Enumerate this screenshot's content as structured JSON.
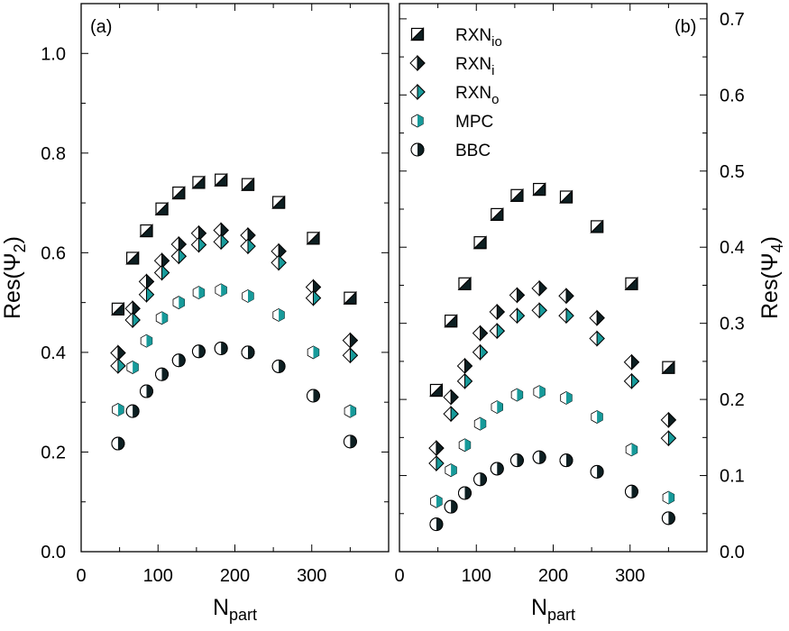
{
  "colors": {
    "dark": "#0d1f22",
    "teal": "#179a9a",
    "light": "#ffffff",
    "frame": "#000000"
  },
  "legend": {
    "entries": [
      {
        "key": "RXN_io",
        "base": "RXN",
        "sub": "io",
        "marker": "square-half-dark"
      },
      {
        "key": "RXN_i",
        "base": "RXN",
        "sub": "i",
        "marker": "diamond-half-dark"
      },
      {
        "key": "RXN_o",
        "base": "RXN",
        "sub": "o",
        "marker": "diamond-half-teal"
      },
      {
        "key": "MPC",
        "base": "MPC",
        "sub": "",
        "marker": "hexagon-half-teal"
      },
      {
        "key": "BBC",
        "base": "BBC",
        "sub": "",
        "marker": "circle-half-dark"
      }
    ],
    "placement": "top-left of panel (b)"
  },
  "chart_data": [
    {
      "type": "scatter",
      "panel_label": "(a)",
      "xlabel": {
        "base": "N",
        "sub": "part"
      },
      "ylabel": {
        "base": "Res(Ψ",
        "sub": "2",
        "close": ")"
      },
      "xlim": [
        0,
        400
      ],
      "ylim": [
        0.0,
        1.1
      ],
      "xticks": [
        "0",
        "100",
        "200",
        "300"
      ],
      "yticks": [
        "0.0",
        "0.2",
        "0.4",
        "0.6",
        "0.8",
        "1.0"
      ],
      "yaxis_side": "left",
      "grid": false,
      "x": [
        48,
        67,
        85,
        105,
        127,
        153,
        182,
        217,
        257,
        302,
        350
      ],
      "series": [
        {
          "key": "RXN_io",
          "values": [
            0.487,
            0.589,
            0.644,
            0.688,
            0.72,
            0.741,
            0.746,
            0.737,
            0.701,
            0.629,
            0.509
          ]
        },
        {
          "key": "RXN_i",
          "values": [
            0.399,
            0.488,
            0.542,
            0.584,
            0.617,
            0.639,
            0.645,
            0.635,
            0.603,
            0.531,
            0.424
          ]
        },
        {
          "key": "RXN_o",
          "values": [
            0.373,
            0.465,
            0.516,
            0.56,
            0.593,
            0.616,
            0.622,
            0.613,
            0.58,
            0.509,
            0.394
          ]
        },
        {
          "key": "MPC",
          "values": [
            0.285,
            0.37,
            0.423,
            0.469,
            0.5,
            0.52,
            0.525,
            0.513,
            0.475,
            0.4,
            0.282
          ]
        },
        {
          "key": "BBC",
          "values": [
            0.217,
            0.282,
            0.322,
            0.356,
            0.384,
            0.402,
            0.408,
            0.4,
            0.372,
            0.313,
            0.221
          ]
        }
      ]
    },
    {
      "type": "scatter",
      "panel_label": "(b)",
      "xlabel": {
        "base": "N",
        "sub": "part"
      },
      "ylabel": {
        "base": "Res(Ψ",
        "sub": "4",
        "close": ")"
      },
      "xlim": [
        0,
        400
      ],
      "ylim": [
        0.0,
        0.72
      ],
      "xticks": [
        "0",
        "100",
        "200",
        "300"
      ],
      "yticks": [
        "0.0",
        "0.1",
        "0.2",
        "0.3",
        "0.4",
        "0.5",
        "0.6",
        "0.7"
      ],
      "yaxis_side": "right",
      "grid": false,
      "x": [
        48,
        67,
        85,
        105,
        127,
        153,
        182,
        217,
        257,
        302,
        350
      ],
      "series": [
        {
          "key": "RXN_io",
          "values": [
            0.212,
            0.303,
            0.352,
            0.406,
            0.443,
            0.468,
            0.476,
            0.466,
            0.427,
            0.352,
            0.242
          ]
        },
        {
          "key": "RXN_i",
          "values": [
            0.136,
            0.203,
            0.244,
            0.287,
            0.315,
            0.337,
            0.346,
            0.336,
            0.307,
            0.249,
            0.173
          ]
        },
        {
          "key": "RXN_o",
          "values": [
            0.116,
            0.181,
            0.224,
            0.262,
            0.29,
            0.31,
            0.317,
            0.31,
            0.28,
            0.224,
            0.149
          ]
        },
        {
          "key": "MPC",
          "values": [
            0.066,
            0.107,
            0.14,
            0.168,
            0.19,
            0.206,
            0.21,
            0.202,
            0.177,
            0.134,
            0.071
          ]
        },
        {
          "key": "BBC",
          "values": [
            0.036,
            0.059,
            0.077,
            0.095,
            0.109,
            0.12,
            0.124,
            0.12,
            0.105,
            0.079,
            0.044
          ]
        }
      ]
    }
  ]
}
